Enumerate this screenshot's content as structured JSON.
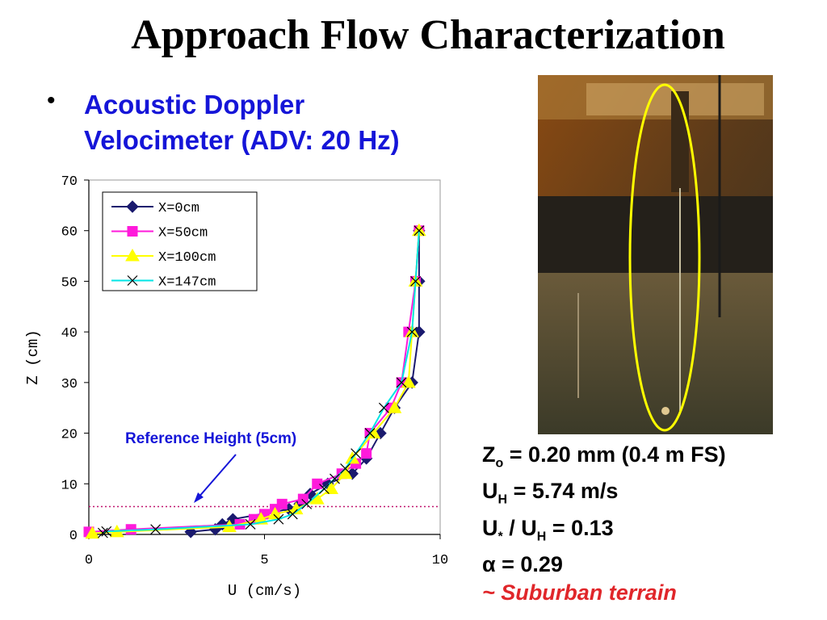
{
  "title": "Approach Flow Characterization",
  "bullet": {
    "symbol": "•",
    "line1": "Acoustic Doppler",
    "line2": "Velocimeter (ADV: 20 Hz)"
  },
  "params": {
    "z0": {
      "sym": "Z",
      "sub": "o",
      "rest": " = 0.20 mm (0.4 m FS)"
    },
    "uh": {
      "sym": "U",
      "sub": "H",
      "rest": " = 5.74 m/s"
    },
    "ustar": {
      "sym": "U",
      "sub": "*",
      "mid": " / U",
      "sub2": "H",
      "rest": " = 0.13"
    },
    "alpha": {
      "sym": "α",
      "rest": " = 0.29"
    },
    "terrain": {
      "tilde": "~",
      "text": " Suburban terrain"
    }
  },
  "chart_data": {
    "type": "scatter",
    "xlabel": "U (cm/s)",
    "ylabel": "Z (cm)",
    "xlim": [
      0,
      10
    ],
    "ylim": [
      0,
      70
    ],
    "xticks": [
      0,
      5,
      10
    ],
    "yticks": [
      0,
      10,
      20,
      30,
      40,
      50,
      60,
      70
    ],
    "grid": false,
    "legend_position": "top-left",
    "reference_line": {
      "y": 5.5,
      "label": "Reference Height (5cm)",
      "color": "#c0146e"
    },
    "series": [
      {
        "name": "X=0cm",
        "color": "#1a1a6e",
        "marker": "diamond",
        "points": [
          [
            2.9,
            0.5
          ],
          [
            3.6,
            1
          ],
          [
            3.8,
            2
          ],
          [
            4.1,
            3
          ],
          [
            5.7,
            5
          ],
          [
            6.0,
            6
          ],
          [
            6.3,
            8
          ],
          [
            6.8,
            10
          ],
          [
            7.5,
            12
          ],
          [
            7.9,
            15
          ],
          [
            8.3,
            20
          ],
          [
            8.7,
            25
          ],
          [
            9.2,
            30
          ],
          [
            9.4,
            40
          ],
          [
            9.4,
            50
          ],
          [
            9.4,
            60
          ]
        ]
      },
      {
        "name": "X=50cm",
        "color": "#ff1adb",
        "marker": "square",
        "points": [
          [
            0,
            0.5
          ],
          [
            1.2,
            1
          ],
          [
            4.3,
            2
          ],
          [
            4.7,
            3
          ],
          [
            5.0,
            4
          ],
          [
            5.3,
            5
          ],
          [
            5.5,
            6
          ],
          [
            6.1,
            7
          ],
          [
            6.5,
            10
          ],
          [
            7.2,
            12
          ],
          [
            7.6,
            14
          ],
          [
            7.9,
            16
          ],
          [
            8.0,
            20
          ],
          [
            8.6,
            25
          ],
          [
            8.9,
            30
          ],
          [
            9.1,
            40
          ],
          [
            9.3,
            50
          ],
          [
            9.4,
            60
          ]
        ]
      },
      {
        "name": "X=100cm",
        "color": "#ffff00",
        "marker": "triangle",
        "points": [
          [
            0.1,
            0.2
          ],
          [
            0.8,
            0.5
          ],
          [
            4.0,
            1.5
          ],
          [
            4.9,
            3
          ],
          [
            5.3,
            4
          ],
          [
            5.9,
            5
          ],
          [
            6.5,
            7
          ],
          [
            6.9,
            9
          ],
          [
            7.3,
            12
          ],
          [
            7.5,
            15
          ],
          [
            8.1,
            20
          ],
          [
            8.7,
            25
          ],
          [
            9.1,
            30
          ],
          [
            9.2,
            40
          ],
          [
            9.3,
            50
          ],
          [
            9.4,
            60
          ]
        ]
      },
      {
        "name": "X=147cm",
        "color": "#00e5e5",
        "marker": "cross",
        "points": [
          [
            0.4,
            0.3
          ],
          [
            0.5,
            0.6
          ],
          [
            1.9,
            1
          ],
          [
            4.6,
            2
          ],
          [
            5.4,
            3
          ],
          [
            5.8,
            4
          ],
          [
            6.2,
            6
          ],
          [
            6.7,
            9
          ],
          [
            7.0,
            11
          ],
          [
            7.3,
            13
          ],
          [
            7.6,
            16
          ],
          [
            8.0,
            20
          ],
          [
            8.4,
            25
          ],
          [
            8.9,
            30
          ],
          [
            9.2,
            40
          ],
          [
            9.3,
            50
          ],
          [
            9.4,
            60
          ]
        ]
      }
    ]
  }
}
